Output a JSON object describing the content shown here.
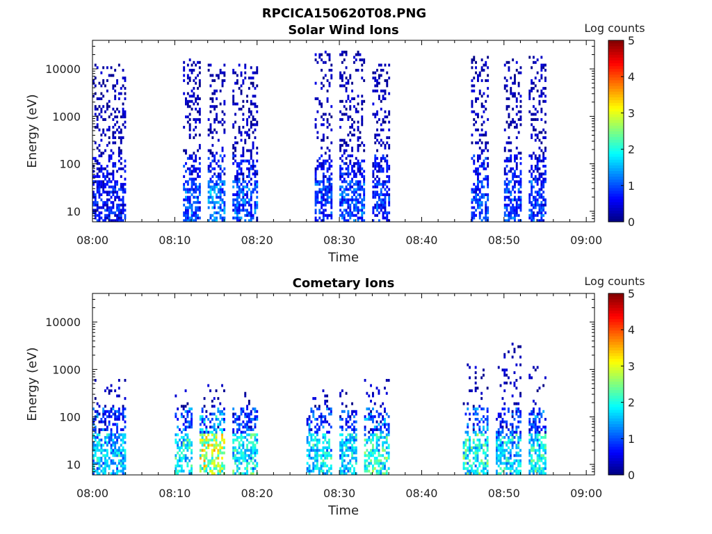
{
  "figure_title": "RPCICA150620T08.PNG",
  "chart_data": [
    {
      "type": "heatmap",
      "title": "Solar Wind Ions",
      "xlabel": "Time",
      "ylabel": "Energy (eV)",
      "yscale": "log",
      "ylim": [
        6,
        40000
      ],
      "xlim": [
        "08:00",
        "09:01"
      ],
      "x_ticks": [
        "08:00",
        "08:10",
        "08:20",
        "08:30",
        "08:40",
        "08:50",
        "09:00"
      ],
      "y_ticks": [
        "10",
        "100",
        "1000",
        "10000"
      ],
      "colorbar": {
        "label": "Log counts",
        "range": [
          0,
          5
        ],
        "ticks": [
          "0",
          "1",
          "2",
          "3",
          "4",
          "5"
        ],
        "colormap": "jet"
      },
      "bursts": [
        {
          "start": "08:00",
          "end": "08:04",
          "max_log_energy": 4.1,
          "intensity": 0.8
        },
        {
          "start": "08:11",
          "end": "08:13",
          "max_log_energy": 4.2,
          "intensity": 1.2
        },
        {
          "start": "08:14",
          "end": "08:16",
          "max_log_energy": 4.1,
          "intensity": 1.6
        },
        {
          "start": "08:17",
          "end": "08:20",
          "max_log_energy": 4.1,
          "intensity": 1.3
        },
        {
          "start": "08:27",
          "end": "08:29",
          "max_log_energy": 4.4,
          "intensity": 1.1
        },
        {
          "start": "08:30",
          "end": "08:33",
          "max_log_energy": 4.4,
          "intensity": 1.2
        },
        {
          "start": "08:34",
          "end": "08:36",
          "max_log_energy": 4.1,
          "intensity": 1.0
        },
        {
          "start": "08:46",
          "end": "08:48",
          "max_log_energy": 4.3,
          "intensity": 1.2
        },
        {
          "start": "08:50",
          "end": "08:52",
          "max_log_energy": 4.2,
          "intensity": 1.1
        },
        {
          "start": "08:53",
          "end": "08:55",
          "max_log_energy": 4.3,
          "intensity": 1.1
        }
      ]
    },
    {
      "type": "heatmap",
      "title": "Cometary Ions",
      "xlabel": "Time",
      "ylabel": "Energy (eV)",
      "yscale": "log",
      "ylim": [
        6,
        40000
      ],
      "xlim": [
        "08:00",
        "09:01"
      ],
      "x_ticks": [
        "08:00",
        "08:10",
        "08:20",
        "08:30",
        "08:40",
        "08:50",
        "09:00"
      ],
      "y_ticks": [
        "10",
        "100",
        "1000",
        "10000"
      ],
      "colorbar": {
        "label": "Log counts",
        "range": [
          0,
          5
        ],
        "ticks": [
          "0",
          "1",
          "2",
          "3",
          "4",
          "5"
        ],
        "colormap": "jet"
      },
      "bursts": [
        {
          "start": "08:00",
          "end": "08:04",
          "max_log_energy": 2.8,
          "intensity": 2.0
        },
        {
          "start": "08:10",
          "end": "08:12",
          "max_log_energy": 2.6,
          "intensity": 2.3
        },
        {
          "start": "08:13",
          "end": "08:16",
          "max_log_energy": 2.7,
          "intensity": 3.4
        },
        {
          "start": "08:17",
          "end": "08:20",
          "max_log_energy": 2.5,
          "intensity": 2.4
        },
        {
          "start": "08:26",
          "end": "08:29",
          "max_log_energy": 2.6,
          "intensity": 2.2
        },
        {
          "start": "08:30",
          "end": "08:32",
          "max_log_energy": 2.6,
          "intensity": 2.1
        },
        {
          "start": "08:33",
          "end": "08:36",
          "max_log_energy": 2.8,
          "intensity": 2.5
        },
        {
          "start": "08:45",
          "end": "08:48",
          "max_log_energy": 3.1,
          "intensity": 2.5
        },
        {
          "start": "08:49",
          "end": "08:52",
          "max_log_energy": 3.7,
          "intensity": 2.1
        },
        {
          "start": "08:53",
          "end": "08:55",
          "max_log_energy": 3.2,
          "intensity": 2.3
        }
      ]
    }
  ]
}
